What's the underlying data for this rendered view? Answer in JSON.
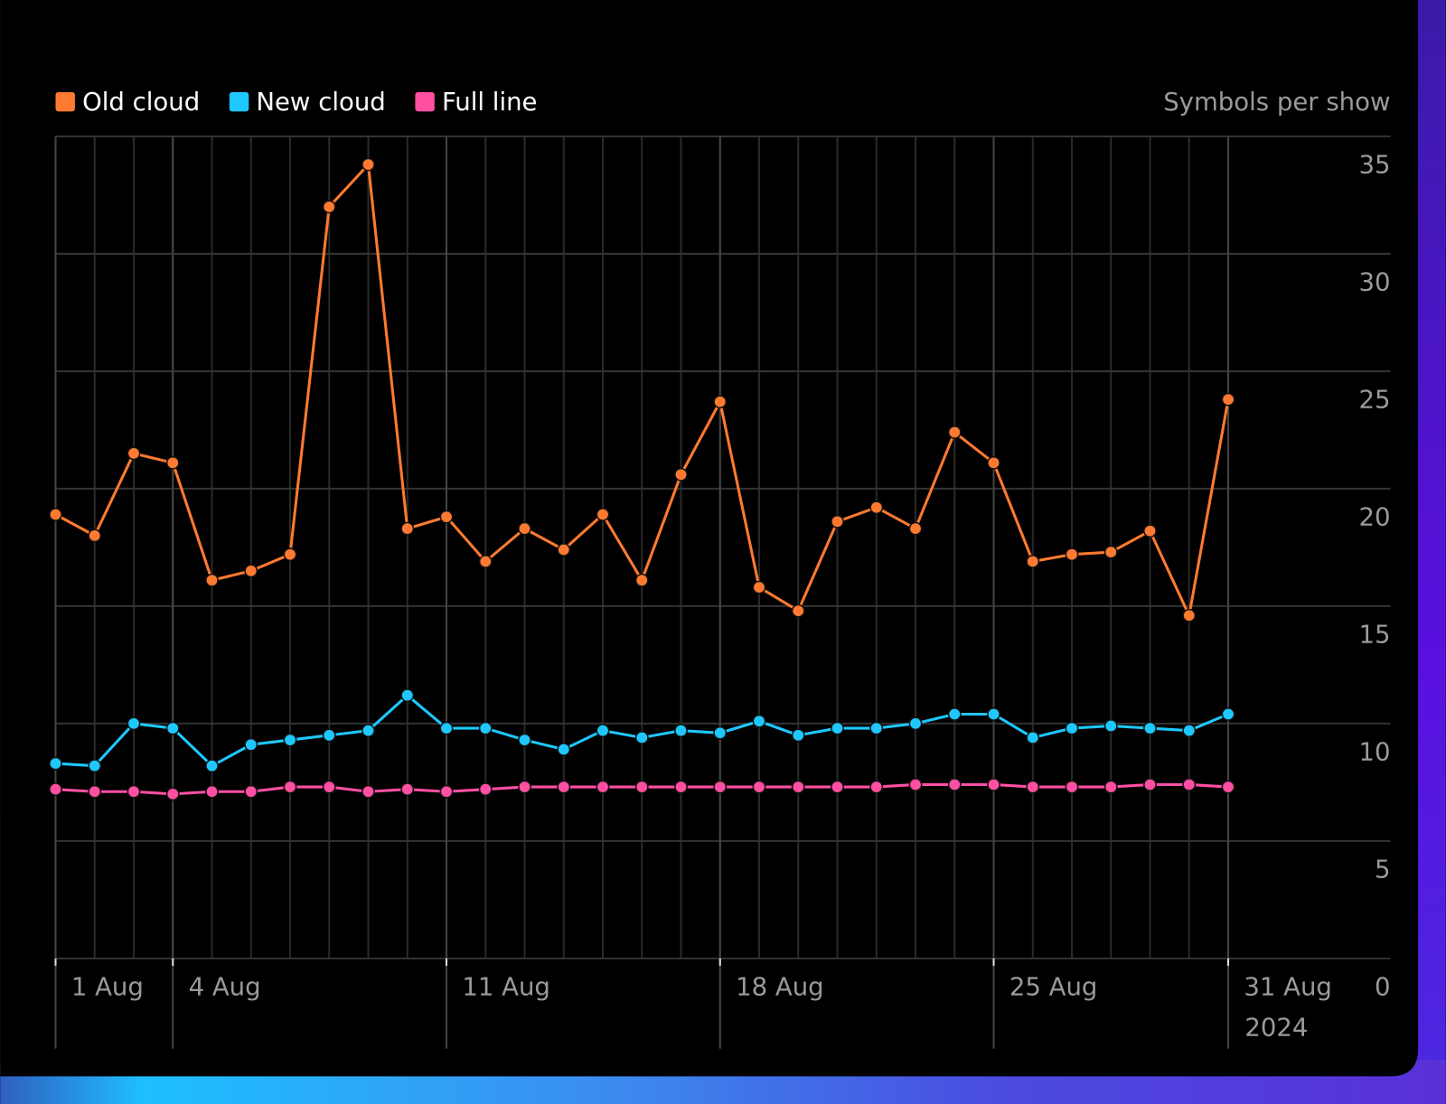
{
  "chart_data": {
    "type": "line",
    "y_axis_label": "Symbols per show",
    "x": [
      1,
      2,
      3,
      4,
      5,
      6,
      7,
      8,
      9,
      10,
      11,
      12,
      13,
      14,
      15,
      16,
      17,
      18,
      19,
      20,
      21,
      22,
      23,
      24,
      25,
      26,
      27,
      28,
      29,
      30,
      31
    ],
    "xlim": [
      1,
      35.15
    ],
    "xticks": [
      {
        "value": 1,
        "label": "1 Aug"
      },
      {
        "value": 4,
        "label": "4 Aug"
      },
      {
        "value": 11,
        "label": "11 Aug"
      },
      {
        "value": 18,
        "label": "18 Aug"
      },
      {
        "value": 25,
        "label": "25 Aug"
      },
      {
        "value": 31,
        "label": "31 Aug"
      }
    ],
    "x_year_label": "2024",
    "ylim": [
      0,
      35
    ],
    "yticks": [
      0,
      5,
      10,
      15,
      20,
      25,
      30,
      35
    ],
    "grid": true,
    "series": [
      {
        "name": "Old cloud",
        "color": "#ff7a30",
        "values": [
          18.9,
          18.0,
          21.5,
          21.1,
          16.1,
          16.5,
          17.2,
          32.0,
          33.8,
          18.3,
          18.8,
          16.9,
          18.3,
          17.4,
          18.9,
          16.1,
          20.6,
          23.7,
          15.8,
          14.8,
          18.6,
          19.2,
          18.3,
          22.4,
          21.1,
          16.9,
          17.2,
          17.3,
          18.2,
          14.6,
          23.8
        ]
      },
      {
        "name": "New cloud",
        "color": "#1ec8ff",
        "values": [
          8.3,
          8.2,
          10.0,
          9.8,
          8.2,
          9.1,
          9.3,
          9.5,
          9.7,
          11.2,
          9.8,
          9.8,
          9.3,
          8.9,
          9.7,
          9.4,
          9.7,
          9.6,
          10.1,
          9.5,
          9.8,
          9.8,
          10.0,
          10.4,
          10.4,
          9.4,
          9.8,
          9.9,
          9.8,
          9.7,
          10.4
        ]
      },
      {
        "name": "Full line",
        "color": "#ff4fa3",
        "values": [
          7.2,
          7.1,
          7.1,
          7.0,
          7.1,
          7.1,
          7.3,
          7.3,
          7.1,
          7.2,
          7.1,
          7.2,
          7.3,
          7.3,
          7.3,
          7.3,
          7.3,
          7.3,
          7.3,
          7.3,
          7.3,
          7.3,
          7.4,
          7.4,
          7.4,
          7.3,
          7.3,
          7.3,
          7.4,
          7.4,
          7.3
        ]
      }
    ]
  }
}
